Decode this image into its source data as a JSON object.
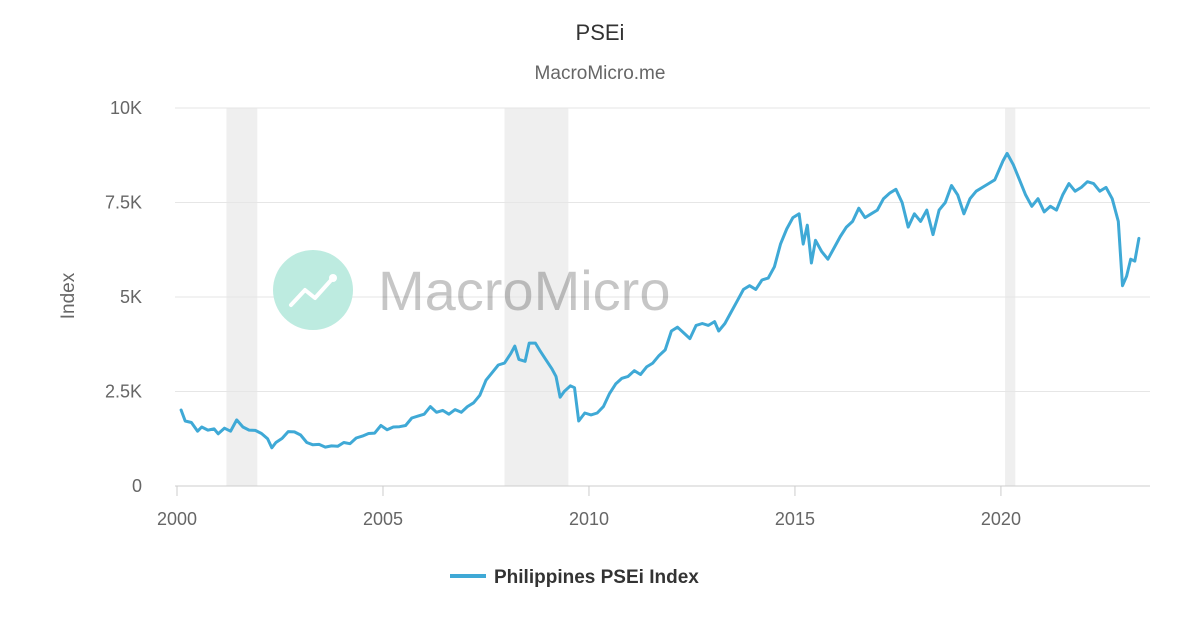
{
  "chart_data": {
    "type": "line",
    "title": "PSEi",
    "subtitle": "MacroMicro.me",
    "watermark": "MacroMicro",
    "ylabel": "Index",
    "xlabel": "",
    "ylim": [
      0,
      10000
    ],
    "xlim": [
      2000.0,
      2023.4
    ],
    "y_ticks": [
      {
        "value": 0,
        "label": "0"
      },
      {
        "value": 2500,
        "label": "2.5K"
      },
      {
        "value": 5000,
        "label": "5K"
      },
      {
        "value": 7500,
        "label": "7.5K"
      },
      {
        "value": 10000,
        "label": "10K"
      }
    ],
    "x_ticks": [
      {
        "value": 2000,
        "label": "2000"
      },
      {
        "value": 2005,
        "label": "2005"
      },
      {
        "value": 2010,
        "label": "2010"
      },
      {
        "value": 2015,
        "label": "2015"
      },
      {
        "value": 2020,
        "label": "2020"
      }
    ],
    "grid": true,
    "legend_position": "bottom-center",
    "shaded_periods": [
      {
        "start": 2001.2,
        "end": 2001.95
      },
      {
        "start": 2007.95,
        "end": 2009.5
      },
      {
        "start": 2020.1,
        "end": 2020.35
      }
    ],
    "colors": {
      "series": "#3fa9d6",
      "grid": "#e6e6e6",
      "band": "#efefef",
      "axis": "#cccccc",
      "watermark_circle": "#bdebe0"
    },
    "series": [
      {
        "name": "Philippines PSEi Index",
        "points": [
          [
            2000.1,
            2010
          ],
          [
            2000.2,
            1720
          ],
          [
            2000.35,
            1680
          ],
          [
            2000.5,
            1450
          ],
          [
            2000.6,
            1560
          ],
          [
            2000.75,
            1480
          ],
          [
            2000.9,
            1510
          ],
          [
            2001.0,
            1380
          ],
          [
            2001.15,
            1530
          ],
          [
            2001.3,
            1450
          ],
          [
            2001.45,
            1750
          ],
          [
            2001.6,
            1560
          ],
          [
            2001.75,
            1480
          ],
          [
            2001.9,
            1470
          ],
          [
            2002.05,
            1390
          ],
          [
            2002.2,
            1250
          ],
          [
            2002.3,
            1010
          ],
          [
            2002.4,
            1150
          ],
          [
            2002.55,
            1260
          ],
          [
            2002.7,
            1440
          ],
          [
            2002.85,
            1430
          ],
          [
            2003.0,
            1350
          ],
          [
            2003.15,
            1150
          ],
          [
            2003.3,
            1090
          ],
          [
            2003.45,
            1100
          ],
          [
            2003.6,
            1030
          ],
          [
            2003.75,
            1060
          ],
          [
            2003.9,
            1050
          ],
          [
            2004.05,
            1150
          ],
          [
            2004.2,
            1120
          ],
          [
            2004.35,
            1270
          ],
          [
            2004.5,
            1320
          ],
          [
            2004.65,
            1390
          ],
          [
            2004.8,
            1400
          ],
          [
            2004.95,
            1600
          ],
          [
            2005.1,
            1490
          ],
          [
            2005.25,
            1560
          ],
          [
            2005.4,
            1570
          ],
          [
            2005.55,
            1600
          ],
          [
            2005.7,
            1800
          ],
          [
            2005.85,
            1850
          ],
          [
            2006.0,
            1900
          ],
          [
            2006.15,
            2100
          ],
          [
            2006.3,
            1950
          ],
          [
            2006.45,
            2000
          ],
          [
            2006.6,
            1900
          ],
          [
            2006.75,
            2020
          ],
          [
            2006.9,
            1950
          ],
          [
            2007.05,
            2100
          ],
          [
            2007.2,
            2200
          ],
          [
            2007.35,
            2400
          ],
          [
            2007.5,
            2800
          ],
          [
            2007.65,
            3000
          ],
          [
            2007.8,
            3200
          ],
          [
            2007.95,
            3250
          ],
          [
            2008.1,
            3500
          ],
          [
            2008.2,
            3700
          ],
          [
            2008.3,
            3350
          ],
          [
            2008.45,
            3300
          ],
          [
            2008.55,
            3780
          ],
          [
            2008.7,
            3780
          ],
          [
            2008.8,
            3600
          ],
          [
            2008.95,
            3350
          ],
          [
            2009.1,
            3100
          ],
          [
            2009.2,
            2900
          ],
          [
            2009.3,
            2350
          ],
          [
            2009.4,
            2500
          ],
          [
            2009.55,
            2650
          ],
          [
            2009.65,
            2600
          ],
          [
            2009.75,
            1720
          ],
          [
            2009.9,
            1930
          ],
          [
            2010.05,
            1880
          ],
          [
            2010.2,
            1930
          ],
          [
            2010.35,
            2100
          ],
          [
            2010.5,
            2450
          ],
          [
            2010.65,
            2700
          ],
          [
            2010.8,
            2850
          ],
          [
            2010.95,
            2900
          ],
          [
            2011.1,
            3050
          ],
          [
            2011.25,
            2950
          ],
          [
            2011.4,
            3150
          ],
          [
            2011.55,
            3250
          ],
          [
            2011.7,
            3450
          ],
          [
            2011.85,
            3600
          ],
          [
            2012.0,
            4100
          ],
          [
            2012.15,
            4200
          ],
          [
            2012.3,
            4050
          ],
          [
            2012.45,
            3900
          ],
          [
            2012.6,
            4250
          ],
          [
            2012.75,
            4300
          ],
          [
            2012.9,
            4250
          ],
          [
            2013.05,
            4350
          ],
          [
            2013.15,
            4100
          ],
          [
            2013.3,
            4300
          ],
          [
            2013.45,
            4600
          ],
          [
            2013.6,
            4900
          ],
          [
            2013.75,
            5200
          ],
          [
            2013.9,
            5300
          ],
          [
            2014.05,
            5200
          ],
          [
            2014.2,
            5450
          ],
          [
            2014.35,
            5500
          ],
          [
            2014.5,
            5800
          ],
          [
            2014.65,
            6400
          ],
          [
            2014.8,
            6800
          ],
          [
            2014.95,
            7100
          ],
          [
            2015.1,
            7200
          ],
          [
            2015.2,
            6400
          ],
          [
            2015.3,
            6900
          ],
          [
            2015.4,
            5900
          ],
          [
            2015.5,
            6500
          ],
          [
            2015.65,
            6200
          ],
          [
            2015.8,
            6000
          ],
          [
            2015.95,
            6300
          ],
          [
            2016.1,
            6600
          ],
          [
            2016.25,
            6850
          ],
          [
            2016.4,
            7000
          ],
          [
            2016.55,
            7350
          ],
          [
            2016.7,
            7100
          ],
          [
            2016.85,
            7200
          ],
          [
            2017.0,
            7300
          ],
          [
            2017.15,
            7600
          ],
          [
            2017.3,
            7750
          ],
          [
            2017.45,
            7850
          ],
          [
            2017.6,
            7500
          ],
          [
            2017.75,
            6850
          ],
          [
            2017.9,
            7200
          ],
          [
            2018.05,
            7000
          ],
          [
            2018.2,
            7300
          ],
          [
            2018.35,
            6650
          ],
          [
            2018.5,
            7300
          ],
          [
            2018.65,
            7500
          ],
          [
            2018.8,
            7950
          ],
          [
            2018.95,
            7700
          ],
          [
            2019.1,
            7200
          ],
          [
            2019.25,
            7600
          ],
          [
            2019.4,
            7800
          ],
          [
            2019.55,
            7900
          ],
          [
            2019.7,
            8000
          ],
          [
            2019.85,
            8100
          ],
          [
            2019.95,
            8350
          ],
          [
            2020.05,
            8600
          ],
          [
            2020.15,
            8800
          ],
          [
            2020.3,
            8500
          ],
          [
            2020.45,
            8100
          ],
          [
            2020.6,
            7700
          ],
          [
            2020.75,
            7400
          ],
          [
            2020.9,
            7600
          ],
          [
            2021.05,
            7250
          ],
          [
            2021.2,
            7400
          ],
          [
            2021.35,
            7300
          ],
          [
            2021.5,
            7700
          ],
          [
            2021.65,
            8000
          ],
          [
            2021.8,
            7800
          ],
          [
            2021.95,
            7900
          ],
          [
            2022.1,
            8050
          ],
          [
            2022.25,
            8000
          ],
          [
            2022.4,
            7800
          ],
          [
            2022.55,
            7900
          ],
          [
            2022.7,
            7600
          ],
          [
            2022.85,
            7000
          ],
          [
            2022.95,
            5300
          ],
          [
            2023.05,
            5550
          ],
          [
            2023.15,
            6000
          ],
          [
            2023.25,
            5950
          ],
          [
            2023.35,
            6550
          ]
        ]
      }
    ]
  }
}
